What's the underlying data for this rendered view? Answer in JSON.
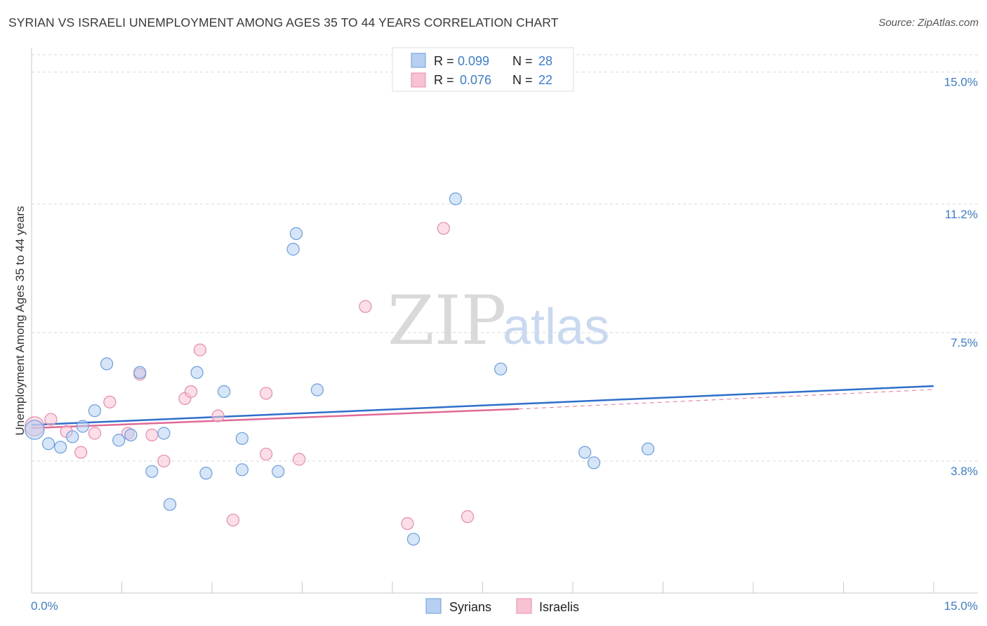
{
  "title": "SYRIAN VS ISRAELI UNEMPLOYMENT AMONG AGES 35 TO 44 YEARS CORRELATION CHART",
  "source": "Source: ZipAtlas.com",
  "watermark": {
    "zip": "ZIP",
    "atlas": "atlas"
  },
  "colors": {
    "syrians_fill": "#b7d0f2",
    "syrians_stroke": "#6a9ee0",
    "syrians_line": "#2f6fcc",
    "israelis_fill": "#f7c3d3",
    "israelis_stroke": "#e98bab",
    "israelis_line": "#e06a96",
    "grid": "#d8d8d8",
    "axis_text": "#3b7dd8"
  },
  "legend": {
    "rows": [
      {
        "r_label": "R = ",
        "r_value": "0.099",
        "n_label": "N = ",
        "n_value": "28"
      },
      {
        "r_label": "R = ",
        "r_value": "0.076",
        "n_label": "N = ",
        "n_value": "22"
      }
    ],
    "bottom": [
      "Syrians",
      "Israelis"
    ]
  },
  "chart_data": {
    "type": "scatter",
    "title": "SYRIAN VS ISRAELI UNEMPLOYMENT AMONG AGES 35 TO 44 YEARS CORRELATION CHART",
    "xlabel": "",
    "ylabel": "Unemployment Among Ages 35 to 44 years",
    "xlim": [
      0,
      15
    ],
    "ylim": [
      0,
      15.5
    ],
    "x_tick_labels": [
      "0.0%",
      "15.0%"
    ],
    "y_ticks": [
      3.8,
      7.5,
      11.2,
      15.0
    ],
    "y_tick_labels": [
      "3.8%",
      "7.5%",
      "11.2%",
      "15.0%"
    ],
    "grid": true,
    "legend_position": "top-center",
    "series": [
      {
        "name": "Syrians",
        "r": 0.099,
        "n": 28,
        "trend": {
          "x": [
            0,
            15
          ],
          "y": [
            4.84,
            5.96
          ],
          "dashed_from": null
        },
        "points": [
          [
            0.05,
            4.7,
            1.6
          ],
          [
            0.28,
            4.3,
            1
          ],
          [
            0.48,
            4.2,
            1
          ],
          [
            0.68,
            4.5,
            1
          ],
          [
            0.85,
            4.8,
            1
          ],
          [
            1.05,
            5.25,
            1
          ],
          [
            1.25,
            6.6,
            1
          ],
          [
            1.45,
            4.4,
            1
          ],
          [
            1.65,
            4.55,
            1
          ],
          [
            1.8,
            6.35,
            1
          ],
          [
            2.0,
            3.5,
            1
          ],
          [
            2.2,
            4.6,
            1
          ],
          [
            2.3,
            2.55,
            1
          ],
          [
            2.75,
            6.35,
            1
          ],
          [
            2.9,
            3.45,
            1
          ],
          [
            3.2,
            5.8,
            1
          ],
          [
            3.5,
            3.55,
            1
          ],
          [
            3.5,
            4.45,
            1
          ],
          [
            4.1,
            3.5,
            1
          ],
          [
            4.35,
            9.9,
            1
          ],
          [
            4.4,
            10.35,
            1
          ],
          [
            4.75,
            5.85,
            1
          ],
          [
            6.35,
            1.55,
            1
          ],
          [
            7.05,
            11.35,
            1
          ],
          [
            7.8,
            6.45,
            1
          ],
          [
            9.2,
            4.05,
            1
          ],
          [
            9.35,
            3.75,
            1
          ],
          [
            10.25,
            4.15,
            1
          ]
        ]
      },
      {
        "name": "Israelis",
        "r": 0.076,
        "n": 22,
        "trend": {
          "x": [
            0,
            8.1
          ],
          "y": [
            4.75,
            5.3
          ],
          "dashed_to": [
            15,
            5.86
          ]
        },
        "points": [
          [
            0.05,
            4.8,
            1.6
          ],
          [
            0.32,
            5.0,
            1
          ],
          [
            0.58,
            4.65,
            1
          ],
          [
            0.82,
            4.05,
            1
          ],
          [
            1.05,
            4.6,
            1
          ],
          [
            1.3,
            5.5,
            1
          ],
          [
            1.6,
            4.6,
            1
          ],
          [
            1.8,
            6.3,
            1
          ],
          [
            2.0,
            4.55,
            1
          ],
          [
            2.2,
            3.8,
            1
          ],
          [
            2.55,
            5.6,
            1
          ],
          [
            2.65,
            5.8,
            1
          ],
          [
            2.8,
            7.0,
            1
          ],
          [
            3.1,
            5.1,
            1
          ],
          [
            3.35,
            2.1,
            1
          ],
          [
            3.9,
            5.75,
            1
          ],
          [
            3.9,
            4.0,
            1
          ],
          [
            4.45,
            3.85,
            1
          ],
          [
            5.55,
            8.25,
            1
          ],
          [
            6.25,
            2.0,
            1
          ],
          [
            6.85,
            10.5,
            1
          ],
          [
            7.25,
            2.2,
            1
          ]
        ]
      }
    ]
  }
}
